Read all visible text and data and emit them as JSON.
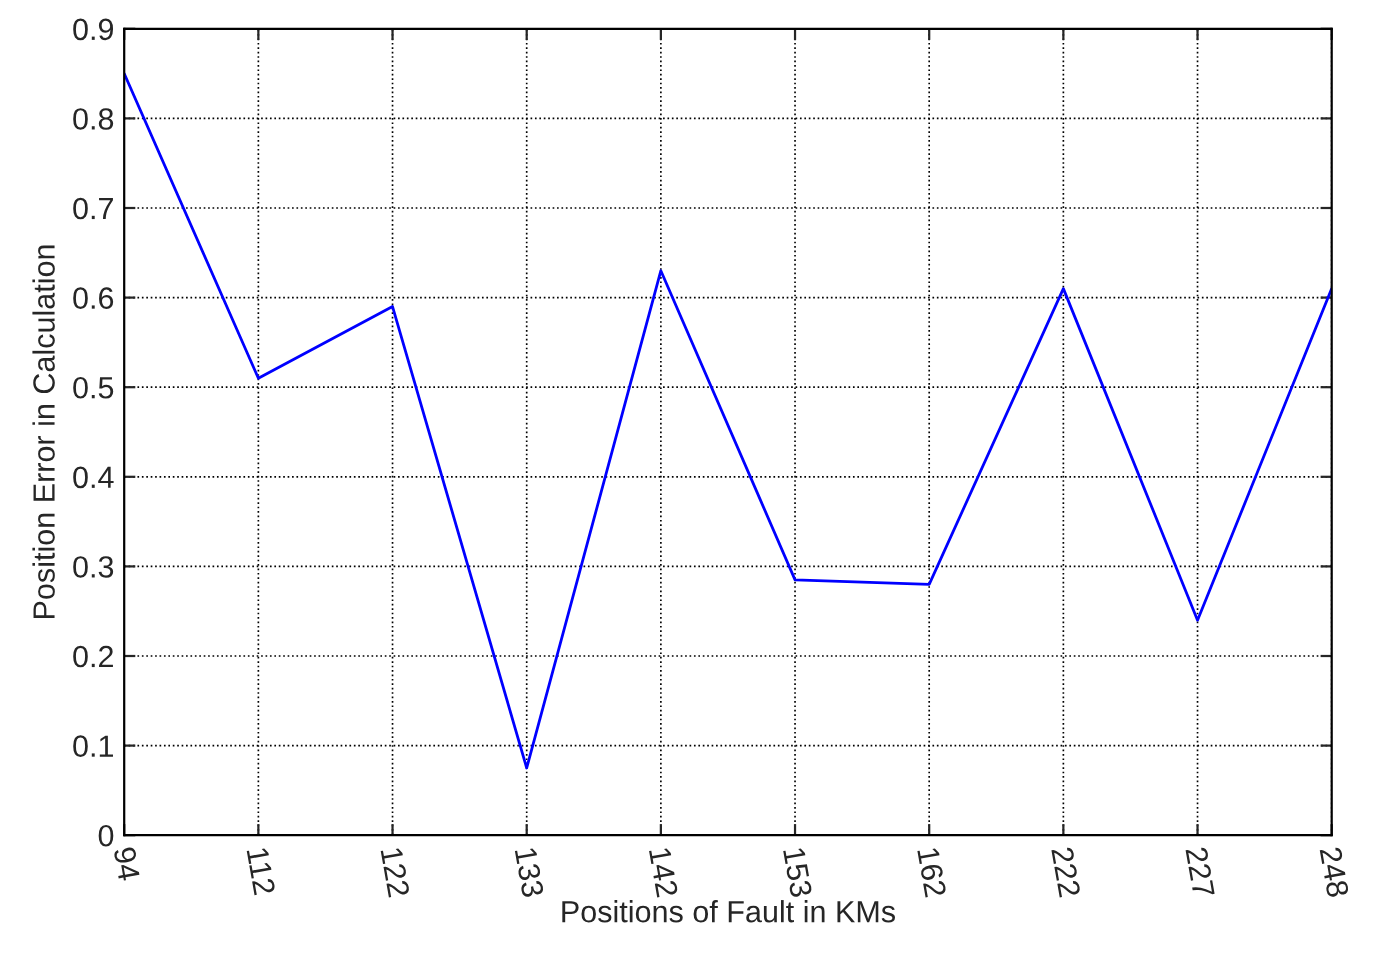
{
  "chart_data": {
    "type": "line",
    "xlabel": "Positions of Fault in KMs",
    "ylabel": "Position Error in Calculation",
    "categories": [
      "94",
      "112",
      "122",
      "133",
      "142",
      "153",
      "162",
      "222",
      "227",
      "248"
    ],
    "series": [
      {
        "color": "#0000ff",
        "values": [
          0.85,
          0.51,
          0.59,
          0.075,
          0.63,
          0.285,
          0.28,
          0.61,
          0.24,
          0.61
        ]
      }
    ],
    "ylim": [
      0,
      0.9
    ],
    "yticks": [
      0,
      0.1,
      0.2,
      0.3,
      0.4,
      0.5,
      0.6,
      0.7,
      0.8,
      0.9
    ],
    "grid": true,
    "line_style": "solid",
    "marker": "none"
  }
}
